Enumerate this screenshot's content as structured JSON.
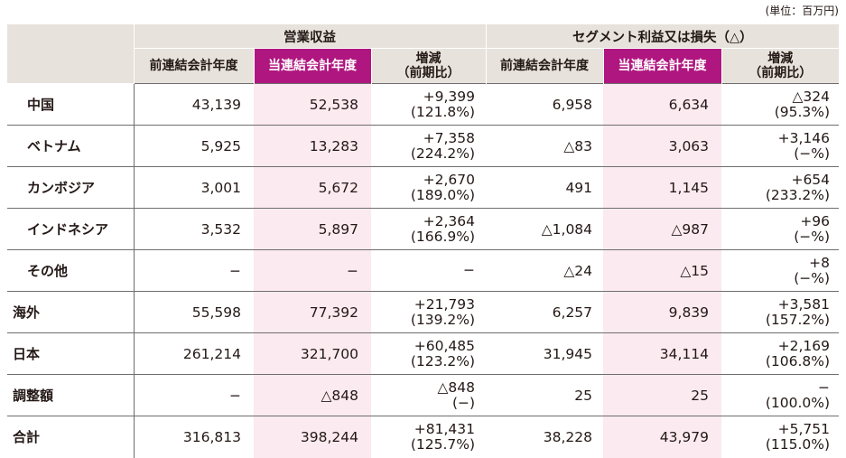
{
  "unit_label": "(単位：百万円)",
  "header": {
    "group1": "営業収益",
    "group2": "セグメント利益又は損失（△）",
    "col_prev": "前連結会計年度",
    "col_curr": "当連結会計年度",
    "col_diff_line1": "増減",
    "col_diff_line2": "（前期比）"
  },
  "rows": [
    {
      "name": "中国",
      "sub": true,
      "rev_prev": "43,139",
      "rev_curr": "52,538",
      "rev_diff": "+9,399",
      "rev_ratio": "(121.8%)",
      "seg_prev": "6,958",
      "seg_curr": "6,634",
      "seg_diff": "△324",
      "seg_ratio": "(95.3%)"
    },
    {
      "name": "ベトナム",
      "sub": true,
      "rev_prev": "5,925",
      "rev_curr": "13,283",
      "rev_diff": "+7,358",
      "rev_ratio": "(224.2%)",
      "seg_prev": "△83",
      "seg_curr": "3,063",
      "seg_diff": "+3,146",
      "seg_ratio": "(−%)"
    },
    {
      "name": "カンボジア",
      "sub": true,
      "rev_prev": "3,001",
      "rev_curr": "5,672",
      "rev_diff": "+2,670",
      "rev_ratio": "(189.0%)",
      "seg_prev": "491",
      "seg_curr": "1,145",
      "seg_diff": "+654",
      "seg_ratio": "(233.2%)"
    },
    {
      "name": "インドネシア",
      "sub": true,
      "rev_prev": "3,532",
      "rev_curr": "5,897",
      "rev_diff": "+2,364",
      "rev_ratio": "(166.9%)",
      "seg_prev": "△1,084",
      "seg_curr": "△987",
      "seg_diff": "+96",
      "seg_ratio": "(−%)"
    },
    {
      "name": "その他",
      "sub": true,
      "rev_prev": "−",
      "rev_curr": "−",
      "rev_diff": "−",
      "rev_ratio": "",
      "seg_prev": "△24",
      "seg_curr": "△15",
      "seg_diff": "+8",
      "seg_ratio": "(−%)"
    },
    {
      "name": "海外",
      "sub": false,
      "rev_prev": "55,598",
      "rev_curr": "77,392",
      "rev_diff": "+21,793",
      "rev_ratio": "(139.2%)",
      "seg_prev": "6,257",
      "seg_curr": "9,839",
      "seg_diff": "+3,581",
      "seg_ratio": "(157.2%)"
    },
    {
      "name": "日本",
      "sub": false,
      "rev_prev": "261,214",
      "rev_curr": "321,700",
      "rev_diff": "+60,485",
      "rev_ratio": "(123.2%)",
      "seg_prev": "31,945",
      "seg_curr": "34,114",
      "seg_diff": "+2,169",
      "seg_ratio": "(106.8%)"
    },
    {
      "name": "調整額",
      "sub": false,
      "rev_prev": "−",
      "rev_curr": "△848",
      "rev_diff": "△848",
      "rev_ratio": "(−)",
      "seg_prev": "25",
      "seg_curr": "25",
      "seg_diff": "−",
      "seg_ratio": "(100.0%)"
    },
    {
      "name": "合計",
      "sub": false,
      "rev_prev": "316,813",
      "rev_curr": "398,244",
      "rev_diff": "+81,431",
      "rev_ratio": "(125.7%)",
      "seg_prev": "38,228",
      "seg_curr": "43,979",
      "seg_diff": "+5,751",
      "seg_ratio": "(115.0%)"
    }
  ],
  "colors": {
    "header_bg": "#e7e2dc",
    "accent": "#b0167f",
    "accent_light": "#fbeaf0",
    "rule": "#6e6e6e"
  }
}
